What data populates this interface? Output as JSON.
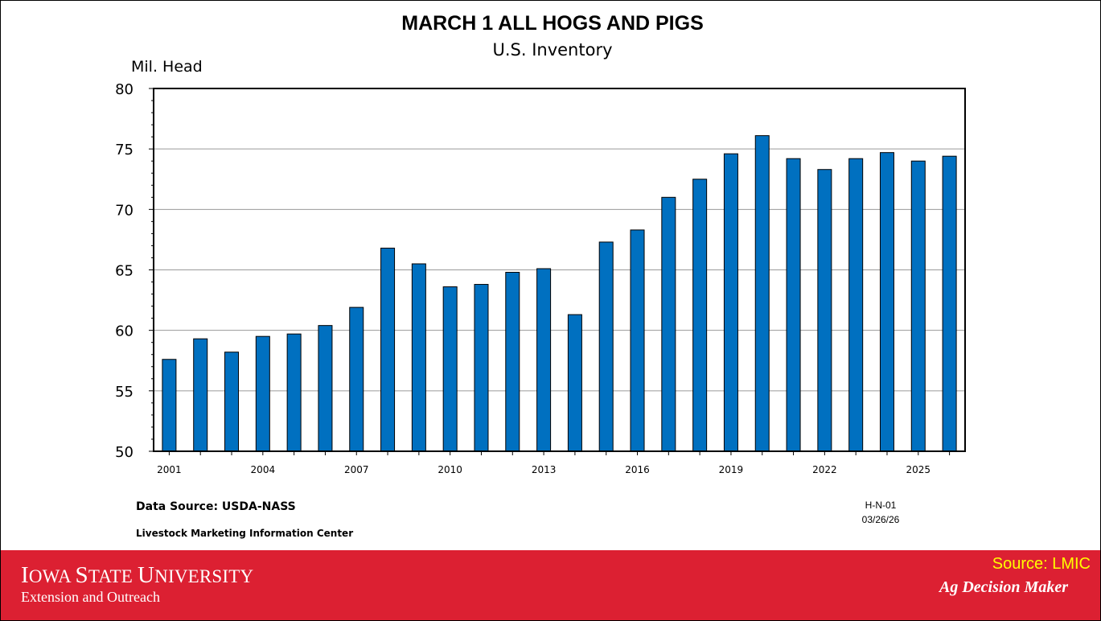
{
  "chart_data": {
    "type": "bar",
    "title": "MARCH 1 ALL HOGS AND PIGS",
    "subtitle": "U.S. Inventory",
    "ylabel": "Mil. Head",
    "xlabel": "",
    "ylim": [
      50,
      80
    ],
    "yticks": [
      50,
      55,
      60,
      65,
      70,
      75,
      80
    ],
    "grid": true,
    "categories": [
      "2001",
      "2002",
      "2003",
      "2004",
      "2005",
      "2006",
      "2007",
      "2008",
      "2009",
      "2010",
      "2011",
      "2012",
      "2013",
      "2014",
      "2015",
      "2016",
      "2017",
      "2018",
      "2019",
      "2020",
      "2021",
      "2022",
      "2023",
      "2024",
      "2025",
      "2026"
    ],
    "xtick_labels": [
      "2001",
      "2004",
      "2007",
      "2010",
      "2013",
      "2016",
      "2019",
      "2022",
      "2025"
    ],
    "values": [
      57.6,
      59.3,
      58.2,
      59.5,
      59.7,
      60.4,
      61.9,
      66.8,
      65.5,
      63.6,
      63.8,
      64.8,
      65.1,
      61.3,
      67.3,
      68.3,
      71.0,
      72.5,
      74.6,
      76.1,
      74.2,
      73.3,
      74.2,
      74.7,
      74.0,
      74.4
    ],
    "bar_color": "#0070c0"
  },
  "notes": {
    "data_source": "Data Source:  USDA-NASS",
    "center": "Livestock Marketing Information Center",
    "code": "H-N-01",
    "date": "03/26/26"
  },
  "footer": {
    "university_first_cap": "I",
    "university_first_rest": "OWA ",
    "university_second_cap": "S",
    "university_second_rest": "TATE ",
    "university_third_cap": "U",
    "university_third_rest": "NIVERSITY",
    "university_alt": "Iowa State University",
    "extension": "Extension and Outreach",
    "source": "Source: LMIC",
    "ag": "Ag Decision Maker",
    "background_color": "#dc2032",
    "source_color": "#ffff00"
  }
}
